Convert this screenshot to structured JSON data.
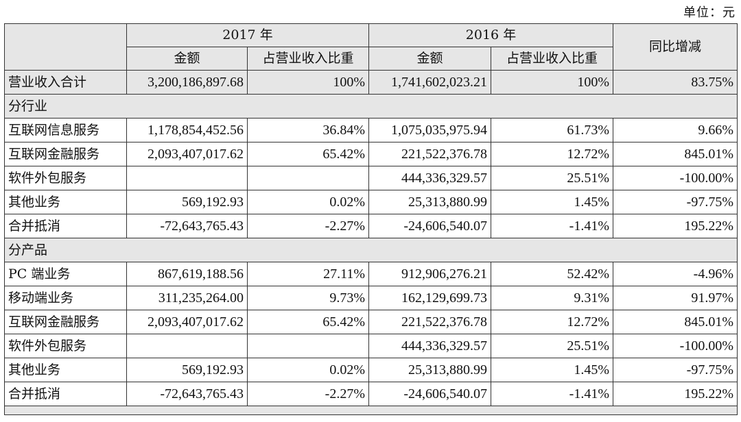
{
  "unit_label": "单位：元",
  "header": {
    "year_2017": "2017 年",
    "year_2016": "2016 年",
    "yoy": "同比增减",
    "amount": "金额",
    "share": "占营业收入比重"
  },
  "total": {
    "label": "营业收入合计",
    "a2017": "3,200,186,897.68",
    "s2017": "100%",
    "a2016": "1,741,602,023.21",
    "s2016": "100%",
    "yoy": "83.75%"
  },
  "by_industry": {
    "title": "分行业",
    "rows": [
      {
        "label": "互联网信息服务",
        "a2017": "1,178,854,452.56",
        "s2017": "36.84%",
        "a2016": "1,075,035,975.94",
        "s2016": "61.73%",
        "yoy": "9.66%"
      },
      {
        "label": "互联网金融服务",
        "a2017": "2,093,407,017.62",
        "s2017": "65.42%",
        "a2016": "221,522,376.78",
        "s2016": "12.72%",
        "yoy": "845.01%"
      },
      {
        "label": "软件外包服务",
        "a2017": "",
        "s2017": "",
        "a2016": "444,336,329.57",
        "s2016": "25.51%",
        "yoy": "-100.00%"
      },
      {
        "label": "其他业务",
        "a2017": "569,192.93",
        "s2017": "0.02%",
        "a2016": "25,313,880.99",
        "s2016": "1.45%",
        "yoy": "-97.75%"
      },
      {
        "label": "合并抵消",
        "a2017": "-72,643,765.43",
        "s2017": "-2.27%",
        "a2016": "-24,606,540.07",
        "s2016": "-1.41%",
        "yoy": "195.22%"
      }
    ]
  },
  "by_product": {
    "title": "分产品",
    "rows": [
      {
        "label": "PC 端业务",
        "a2017": "867,619,188.56",
        "s2017": "27.11%",
        "a2016": "912,906,276.21",
        "s2016": "52.42%",
        "yoy": "-4.96%"
      },
      {
        "label": "移动端业务",
        "a2017": "311,235,264.00",
        "s2017": "9.73%",
        "a2016": "162,129,699.73",
        "s2016": "9.31%",
        "yoy": "91.97%"
      },
      {
        "label": "互联网金融服务",
        "a2017": "2,093,407,017.62",
        "s2017": "65.42%",
        "a2016": "221,522,376.78",
        "s2016": "12.72%",
        "yoy": "845.01%"
      },
      {
        "label": "软件外包服务",
        "a2017": "",
        "s2017": "",
        "a2016": "444,336,329.57",
        "s2016": "25.51%",
        "yoy": "-100.00%"
      },
      {
        "label": "其他业务",
        "a2017": "569,192.93",
        "s2017": "0.02%",
        "a2016": "25,313,880.99",
        "s2016": "1.45%",
        "yoy": "-97.75%"
      },
      {
        "label": "合并抵消",
        "a2017": "-72,643,765.43",
        "s2017": "-2.27%",
        "a2016": "-24,606,540.07",
        "s2016": "-1.41%",
        "yoy": "195.22%"
      }
    ]
  }
}
